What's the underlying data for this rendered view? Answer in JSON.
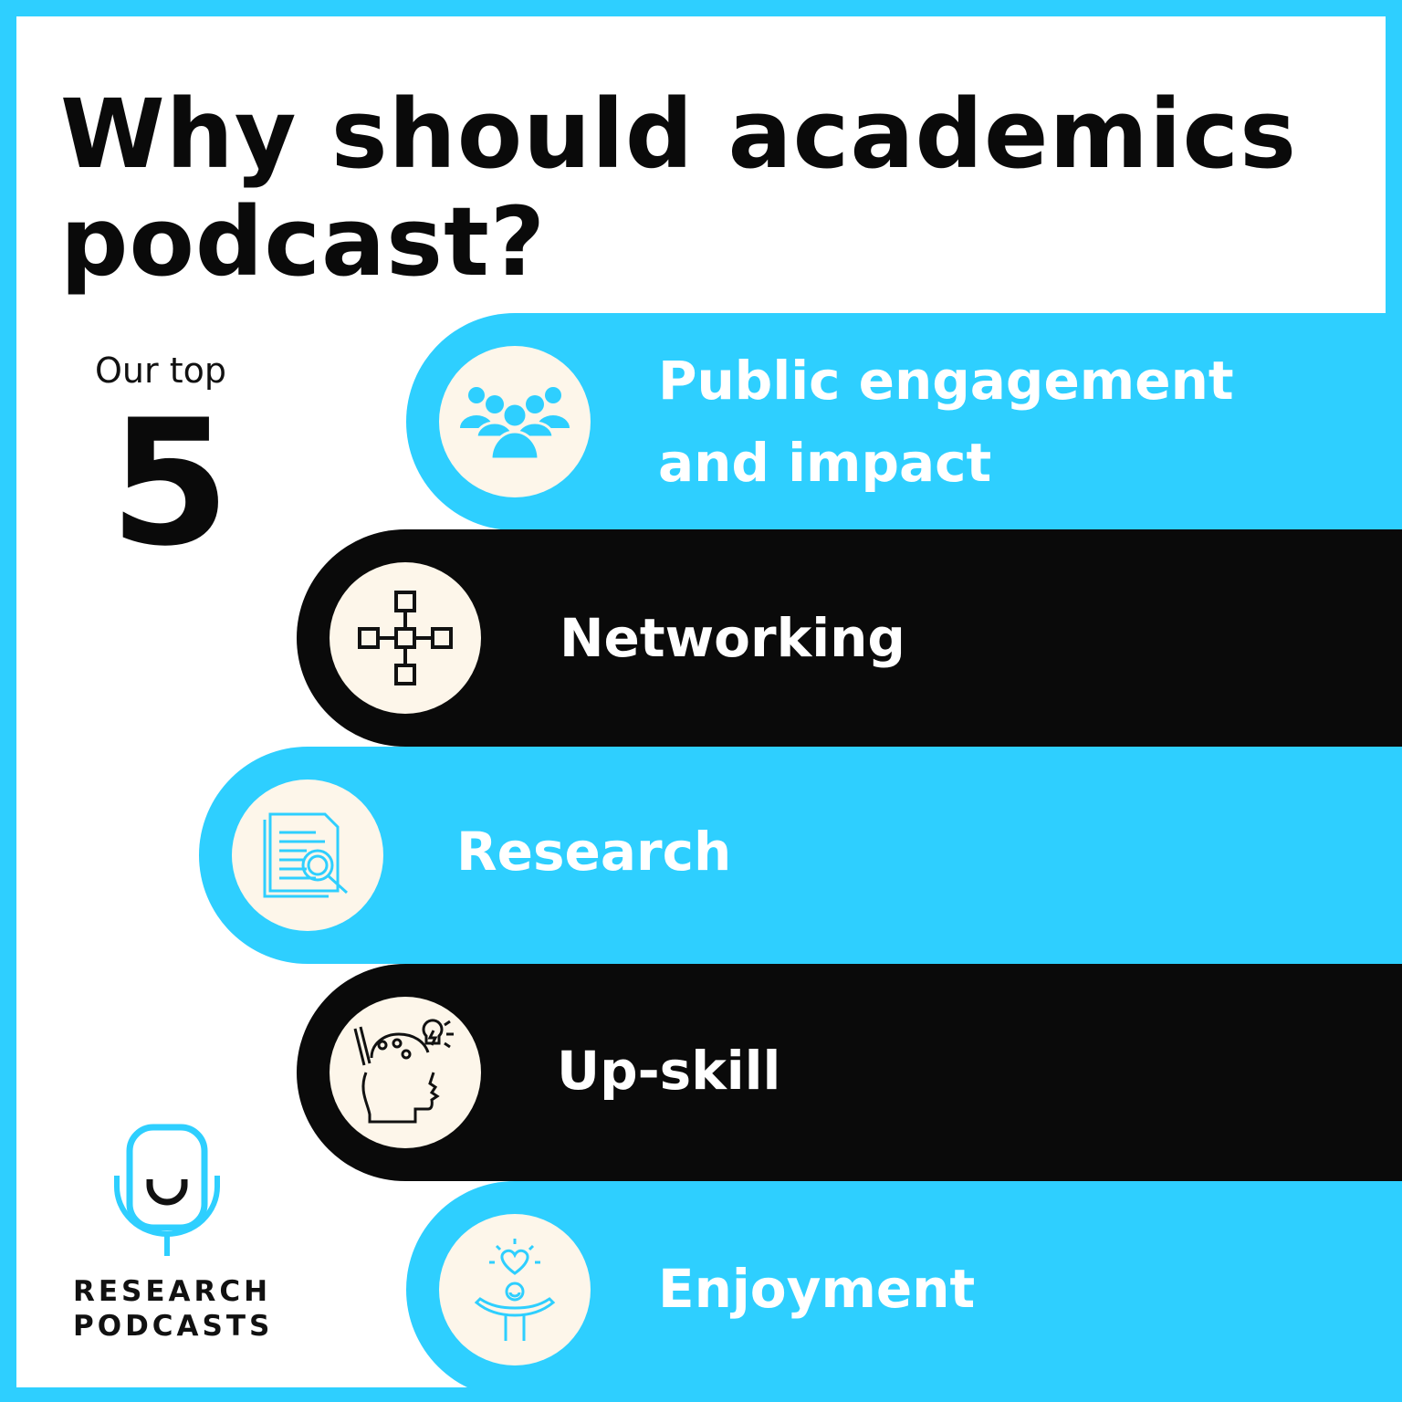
{
  "colors": {
    "accent": "#2ecfff",
    "dark": "#0a0a0a",
    "circle": "#fdf6ea"
  },
  "title_line1": "Why should academics",
  "title_line2": "podcast?",
  "intro": "Our top",
  "count": "5",
  "items": [
    {
      "label_line1": "Public engagement",
      "label_line2": "and impact",
      "icon": "people-group-icon"
    },
    {
      "label": "Networking",
      "icon": "network-nodes-icon"
    },
    {
      "label": "Research",
      "icon": "document-search-icon"
    },
    {
      "label": "Up-skill",
      "icon": "head-ideas-icon"
    },
    {
      "label": "Enjoyment",
      "icon": "person-heart-icon"
    }
  ],
  "logo": {
    "line1": "RESEARCH",
    "line2": "PODCASTS",
    "icon": "microphone-smile-icon"
  }
}
